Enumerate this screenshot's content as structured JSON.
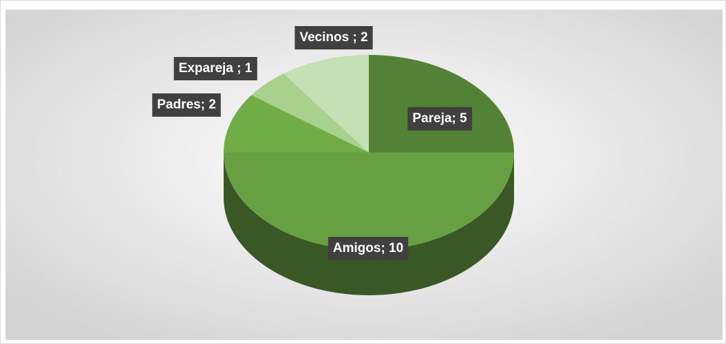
{
  "chart_data": {
    "type": "pie",
    "categories": [
      "Pareja",
      "Amigos",
      "Padres",
      "Expareja",
      "Vecinos"
    ],
    "values": [
      5,
      10,
      2,
      1,
      2
    ],
    "value_labels": [
      "Pareja; 5",
      "Amigos; 10",
      "Padres; 2",
      "Expareja ; 1",
      "Vecinos ; 2"
    ],
    "colors": [
      "#538135",
      "#67a043",
      "#70ad47",
      "#a9d18e",
      "#c5e0b4"
    ]
  }
}
